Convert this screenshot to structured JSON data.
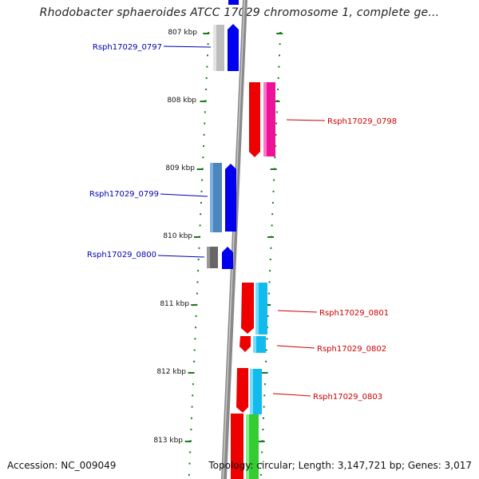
{
  "title": "Rhodobacter sphaeroides ATCC 17029 chromosome 1, complete ge...",
  "ticks": [
    {
      "label": "807 kbp"
    },
    {
      "label": "808 kbp"
    },
    {
      "label": "809 kbp"
    },
    {
      "label": "810 kbp"
    },
    {
      "label": "811 kbp"
    },
    {
      "label": "812 kbp"
    },
    {
      "label": "813 kbp"
    }
  ],
  "genes": [
    {
      "label": "Rsph17029_0797",
      "color": "#0000b0"
    },
    {
      "label": "Rsph17029_0798",
      "color": "#cc0000"
    },
    {
      "label": "Rsph17029_0799",
      "color": "#0000b0"
    },
    {
      "label": "Rsph17029_0800",
      "color": "#0000b0"
    },
    {
      "label": "Rsph17029_0801",
      "color": "#cc0000"
    },
    {
      "label": "Rsph17029_0802",
      "color": "#cc0000"
    },
    {
      "label": "Rsph17029_0803",
      "color": "#cc0000"
    }
  ],
  "colors": {
    "backbone": "#8a8a8a",
    "tick": "#1a7a1a",
    "forward_strand": "#0000ee",
    "reverse_strand": "#ee0000",
    "magenta": "#ee1199",
    "cyan": "#11bbee",
    "steelblue": "#4b86c0",
    "green": "#33cc33"
  },
  "footer": {
    "accession": "Accession: NC_009049",
    "summary": "Topology: circular; Length: 3,147,721 bp; Genes: 3,017"
  }
}
